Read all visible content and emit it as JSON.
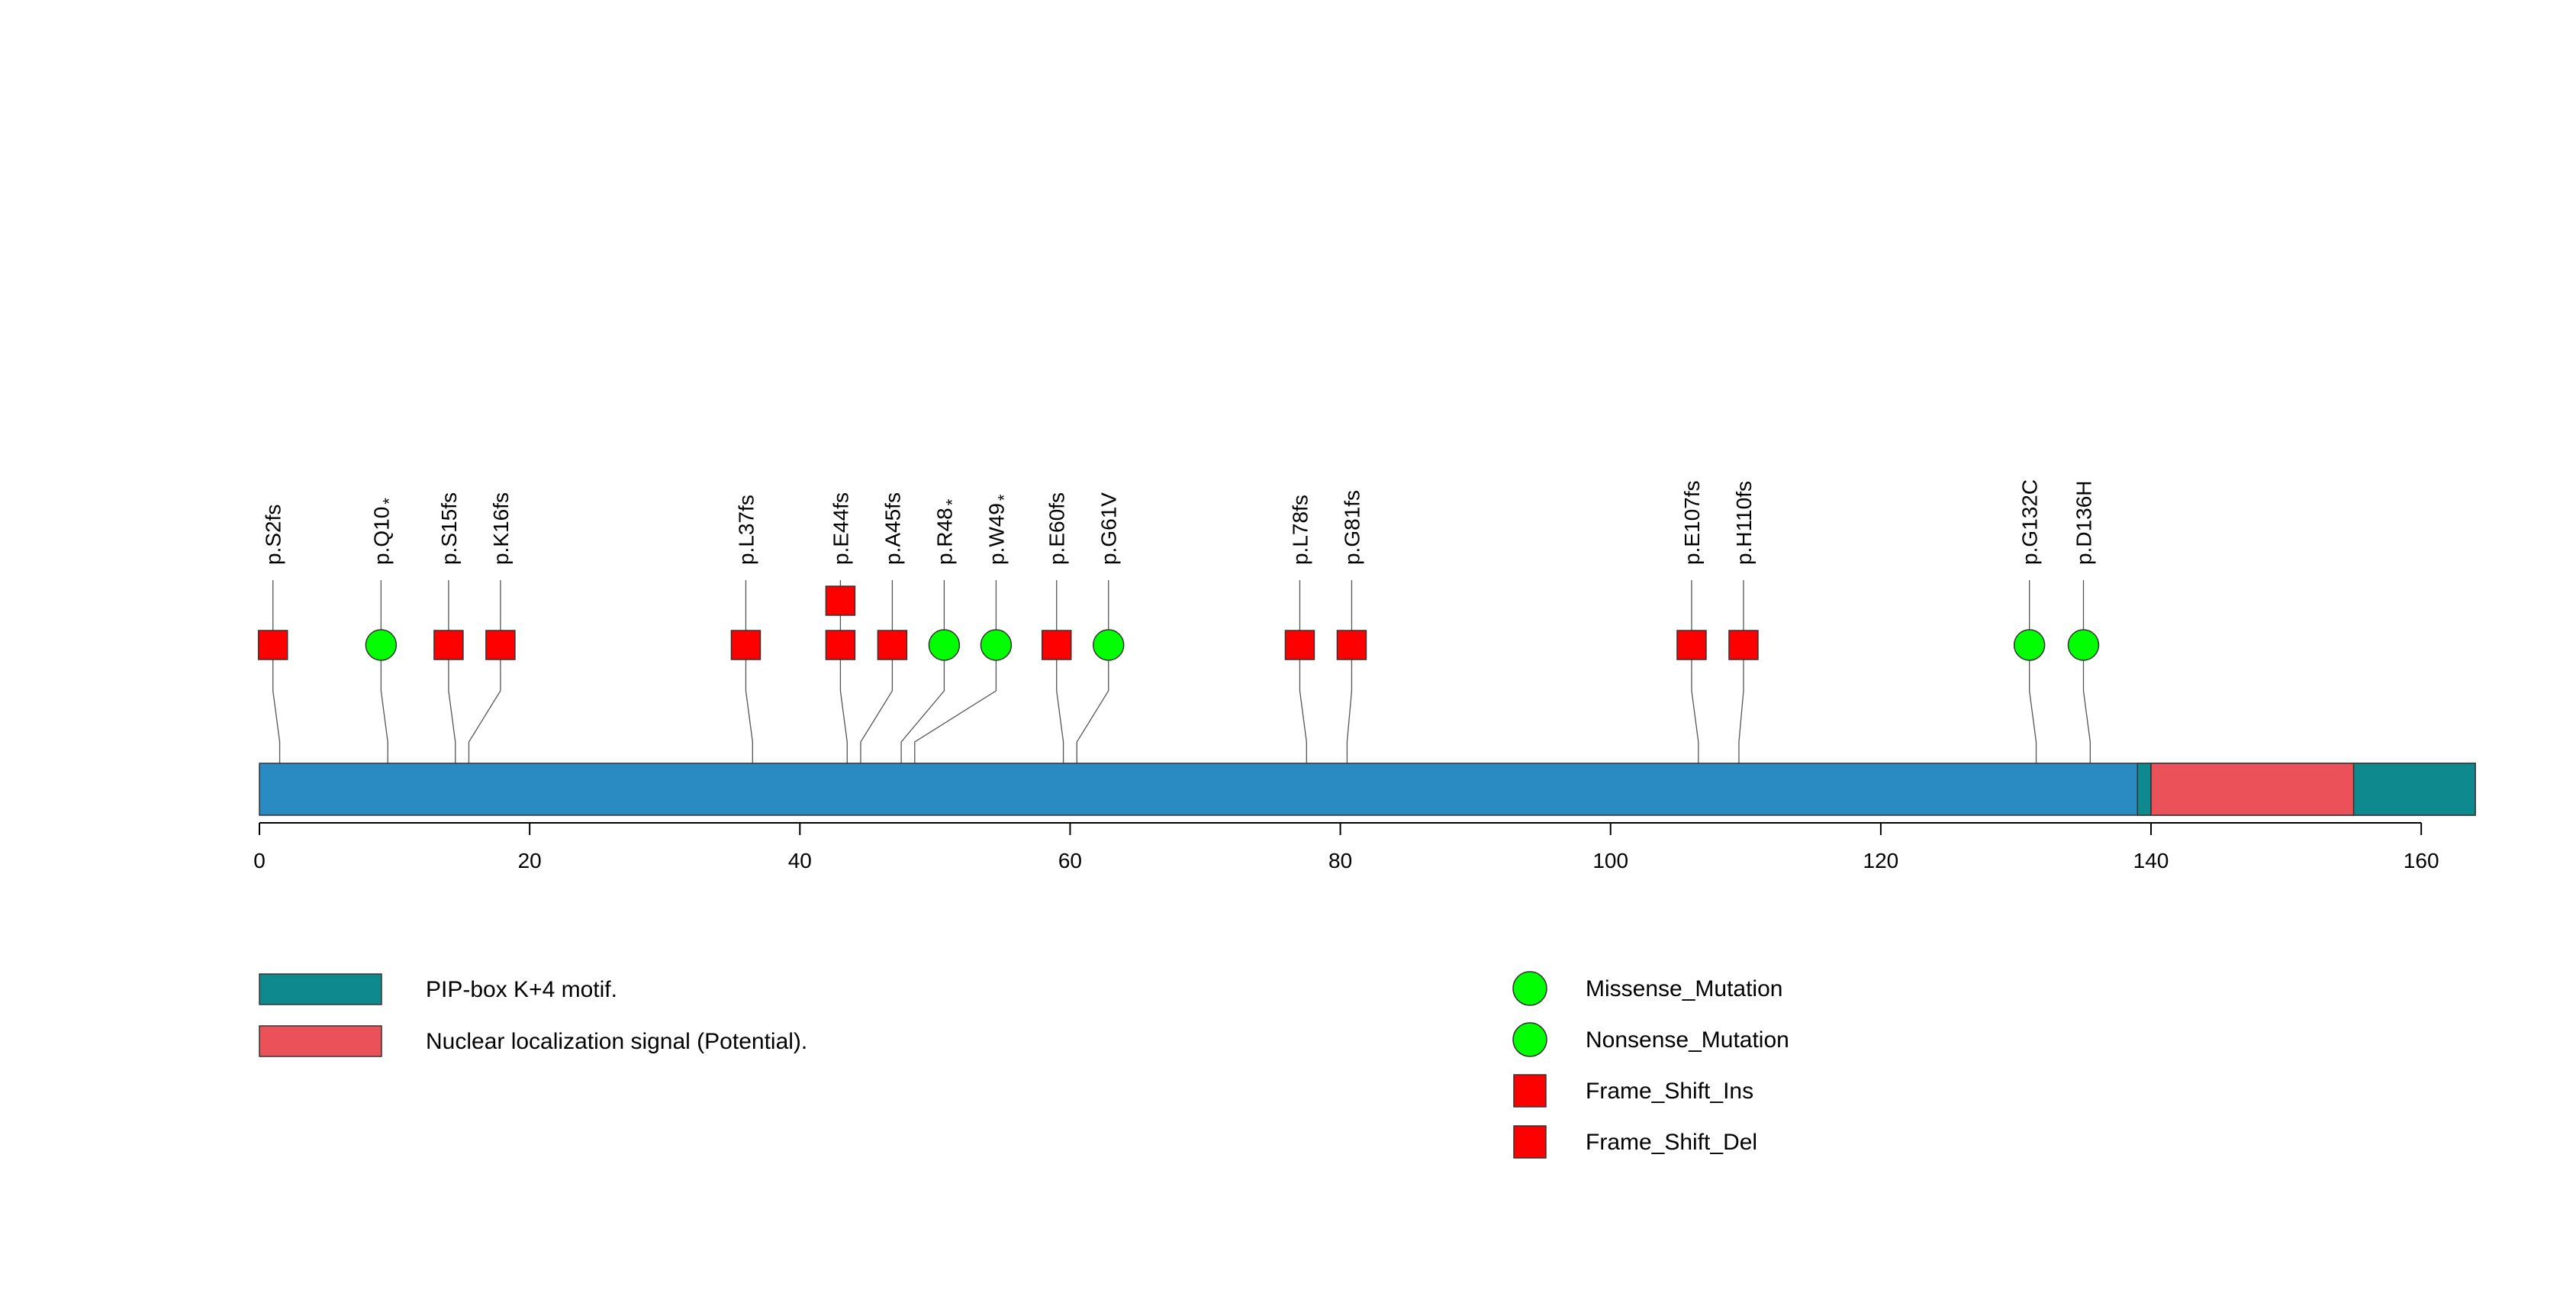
{
  "protein": {
    "length": 164,
    "axis_ticks": [
      0,
      20,
      40,
      60,
      80,
      100,
      120,
      140,
      160
    ],
    "base_color": "#2a8bc2",
    "domains": [
      {
        "name": "PIP-box K+4 motif.",
        "start": 139,
        "end": 140,
        "color": "#0e8a8e"
      },
      {
        "name": "Nuclear localization signal (Potential).",
        "start": 140,
        "end": 155,
        "color": "#ea5159"
      },
      {
        "name": "PIP-box K+4 motif.",
        "start": 155,
        "end": 164,
        "color": "#0e8a8e"
      }
    ]
  },
  "mutations": [
    {
      "label": "p.S2fs",
      "pos": 1,
      "type": "Frame_Shift",
      "stack": 1
    },
    {
      "label": "p.Q10",
      "star": "*",
      "pos": 9,
      "type": "Nonsense_Mutation",
      "stack": 1
    },
    {
      "label": "p.S15fs",
      "pos": 14,
      "type": "Frame_Shift",
      "stack": 1
    },
    {
      "label": "p.K16fs",
      "pos": 15,
      "type": "Frame_Shift",
      "stack": 1
    },
    {
      "label": "p.L37fs",
      "pos": 36,
      "type": "Frame_Shift",
      "stack": 1
    },
    {
      "label": "p.E44fs",
      "pos": 43,
      "type": "Frame_Shift",
      "stack": 2
    },
    {
      "label": "p.A45fs",
      "pos": 44,
      "type": "Frame_Shift",
      "stack": 1
    },
    {
      "label": "p.R48",
      "star": "*",
      "pos": 47,
      "type": "Nonsense_Mutation",
      "stack": 1
    },
    {
      "label": "p.W49",
      "star": "*",
      "pos": 48,
      "type": "Nonsense_Mutation",
      "stack": 1
    },
    {
      "label": "p.E60fs",
      "pos": 59,
      "type": "Frame_Shift",
      "stack": 1
    },
    {
      "label": "p.G61V",
      "pos": 60,
      "type": "Missense_Mutation",
      "stack": 1
    },
    {
      "label": "p.L78fs",
      "pos": 77,
      "type": "Frame_Shift",
      "stack": 1
    },
    {
      "label": "p.G81fs",
      "pos": 80,
      "type": "Frame_Shift",
      "stack": 1
    },
    {
      "label": "p.E107fs",
      "pos": 106,
      "type": "Frame_Shift",
      "stack": 1
    },
    {
      "label": "p.H110fs",
      "pos": 109,
      "type": "Frame_Shift",
      "stack": 1
    },
    {
      "label": "p.G132C",
      "pos": 131,
      "type": "Missense_Mutation",
      "stack": 1
    },
    {
      "label": "p.D136H",
      "pos": 135,
      "type": "Missense_Mutation",
      "stack": 1
    }
  ],
  "legend_domains": [
    {
      "label": "PIP-box K+4 motif.",
      "color": "#0e8a8e"
    },
    {
      "label": "Nuclear localization signal (Potential).",
      "color": "#ea5159"
    }
  ],
  "legend_mutations": [
    {
      "label": "Missense_Mutation",
      "shape": "circle",
      "color": "#00ff00"
    },
    {
      "label": "Nonsense_Mutation",
      "shape": "circle",
      "color": "#00ff00"
    },
    {
      "label": "Frame_Shift_Ins",
      "shape": "square",
      "color": "#ff0000"
    },
    {
      "label": "Frame_Shift_Del",
      "shape": "square",
      "color": "#ff0000"
    }
  ]
}
